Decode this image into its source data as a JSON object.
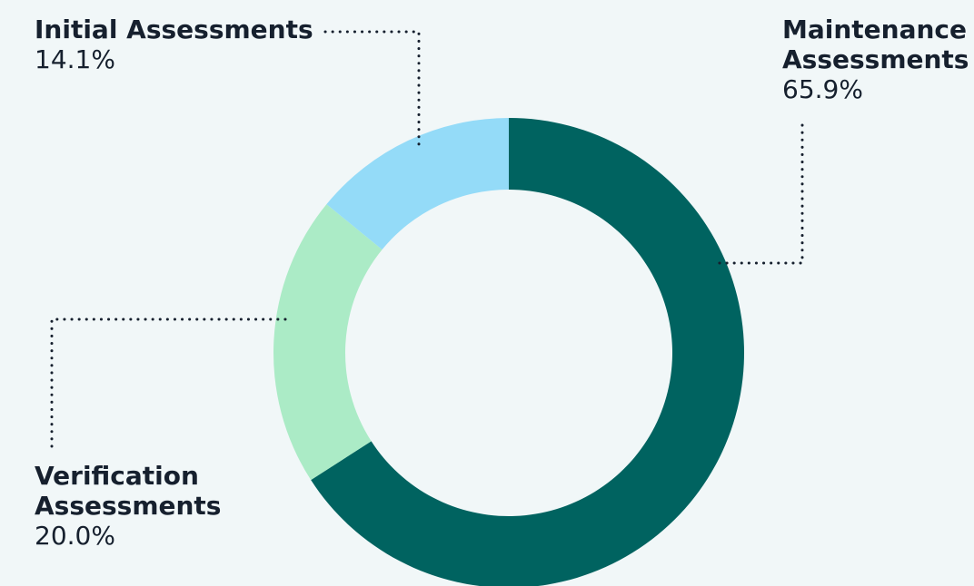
{
  "chart_data": {
    "type": "pie",
    "donut": true,
    "title": "",
    "slices": [
      {
        "name": "Maintenance Assessments",
        "label_lines": [
          "Maintenance",
          "Assessments"
        ],
        "value": 65.9,
        "display": "65.9%",
        "color": "#006360"
      },
      {
        "name": "Verification Assessments",
        "label_lines": [
          "Verification",
          "Assessments"
        ],
        "value": 20.0,
        "display": "20.0%",
        "color": "#abebc6"
      },
      {
        "name": "Initial Assessments",
        "label_lines": [
          "Initial Assessments"
        ],
        "value": 14.1,
        "display": "14.1%",
        "color": "#94dbf8"
      }
    ],
    "legend": "callout labels with dotted leader lines",
    "background": "#f1f7f8"
  }
}
